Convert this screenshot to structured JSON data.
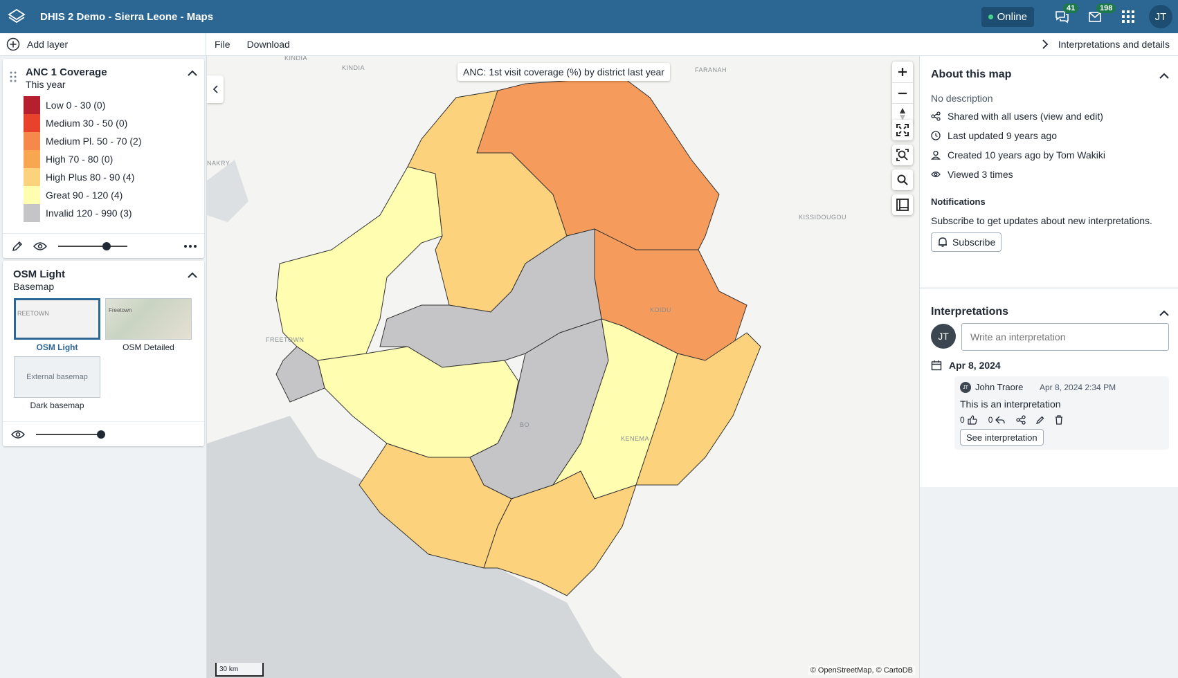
{
  "header": {
    "app_title": "DHIS 2 Demo - Sierra Leone - Maps",
    "online_label": "Online",
    "messages_count": "41",
    "notifications_count": "198",
    "user_initials": "JT"
  },
  "toolbar": {
    "add_layer_label": "Add layer",
    "file_label": "File",
    "download_label": "Download",
    "interpretations_toggle_label": "Interpretations and details"
  },
  "layers": {
    "thematic": {
      "title": "ANC 1 Coverage",
      "period": "This year",
      "legend": [
        {
          "label": "Low 0 - 30 (0)",
          "color": "#b51f2e"
        },
        {
          "label": "Medium 30 - 50 (0)",
          "color": "#e8412c"
        },
        {
          "label": "Medium Pl. 50 - 70 (2)",
          "color": "#f5884a"
        },
        {
          "label": "High 70 - 80 (0)",
          "color": "#f9a650"
        },
        {
          "label": "High Plus 80 - 90 (4)",
          "color": "#fcd27c"
        },
        {
          "label": "Great 90 - 120 (4)",
          "color": "#fefdb0"
        },
        {
          "label": "Invalid 120 - 990 (3)",
          "color": "#c5c5c7"
        }
      ],
      "opacity": 0.9
    },
    "basemap": {
      "title": "OSM Light",
      "subtitle": "Basemap",
      "options": [
        {
          "label": "OSM Light",
          "thumb_text": "REETOWN"
        },
        {
          "label": "OSM Detailed",
          "thumb_text": "Freetown"
        },
        {
          "label": "Dark basemap",
          "thumb_text": "External basemap"
        }
      ],
      "opacity": 1.0
    }
  },
  "map": {
    "title": "ANC: 1st visit coverage (%) by district last year",
    "scale_label": "30 km",
    "attribution": "© OpenStreetMap, © CartoDB",
    "places": {
      "kindia1": "KINDIA",
      "kindia2": "KINDIA",
      "faranah": "FARANAH",
      "kissidougou": "KISSIDOUGOU",
      "freetown": "FREETOWN",
      "nakry": "NAKRY",
      "koidu": "KOIDU",
      "kenema": "KENEMA",
      "bo": "BO"
    }
  },
  "details": {
    "about_title": "About this map",
    "description": "No description",
    "sharing": "Shared with all users (view and edit)",
    "last_updated": "Last updated 9 years ago",
    "created": "Created 10 years ago by Tom Wakiki",
    "views": "Viewed 3 times",
    "notifications_title": "Notifications",
    "notifications_text": "Subscribe to get updates about new interpretations.",
    "subscribe_label": "Subscribe",
    "interpretations_title": "Interpretations",
    "current_user_initials": "JT",
    "input_placeholder": "Write an interpretation",
    "date_group": "Apr 8, 2024",
    "interpretation": {
      "author": "John Traore",
      "author_initials": "JT",
      "timestamp": "Apr 8, 2024 2:34 PM",
      "text": "This is an interpretation",
      "likes": "0",
      "replies": "0",
      "see_label": "See interpretation"
    }
  }
}
